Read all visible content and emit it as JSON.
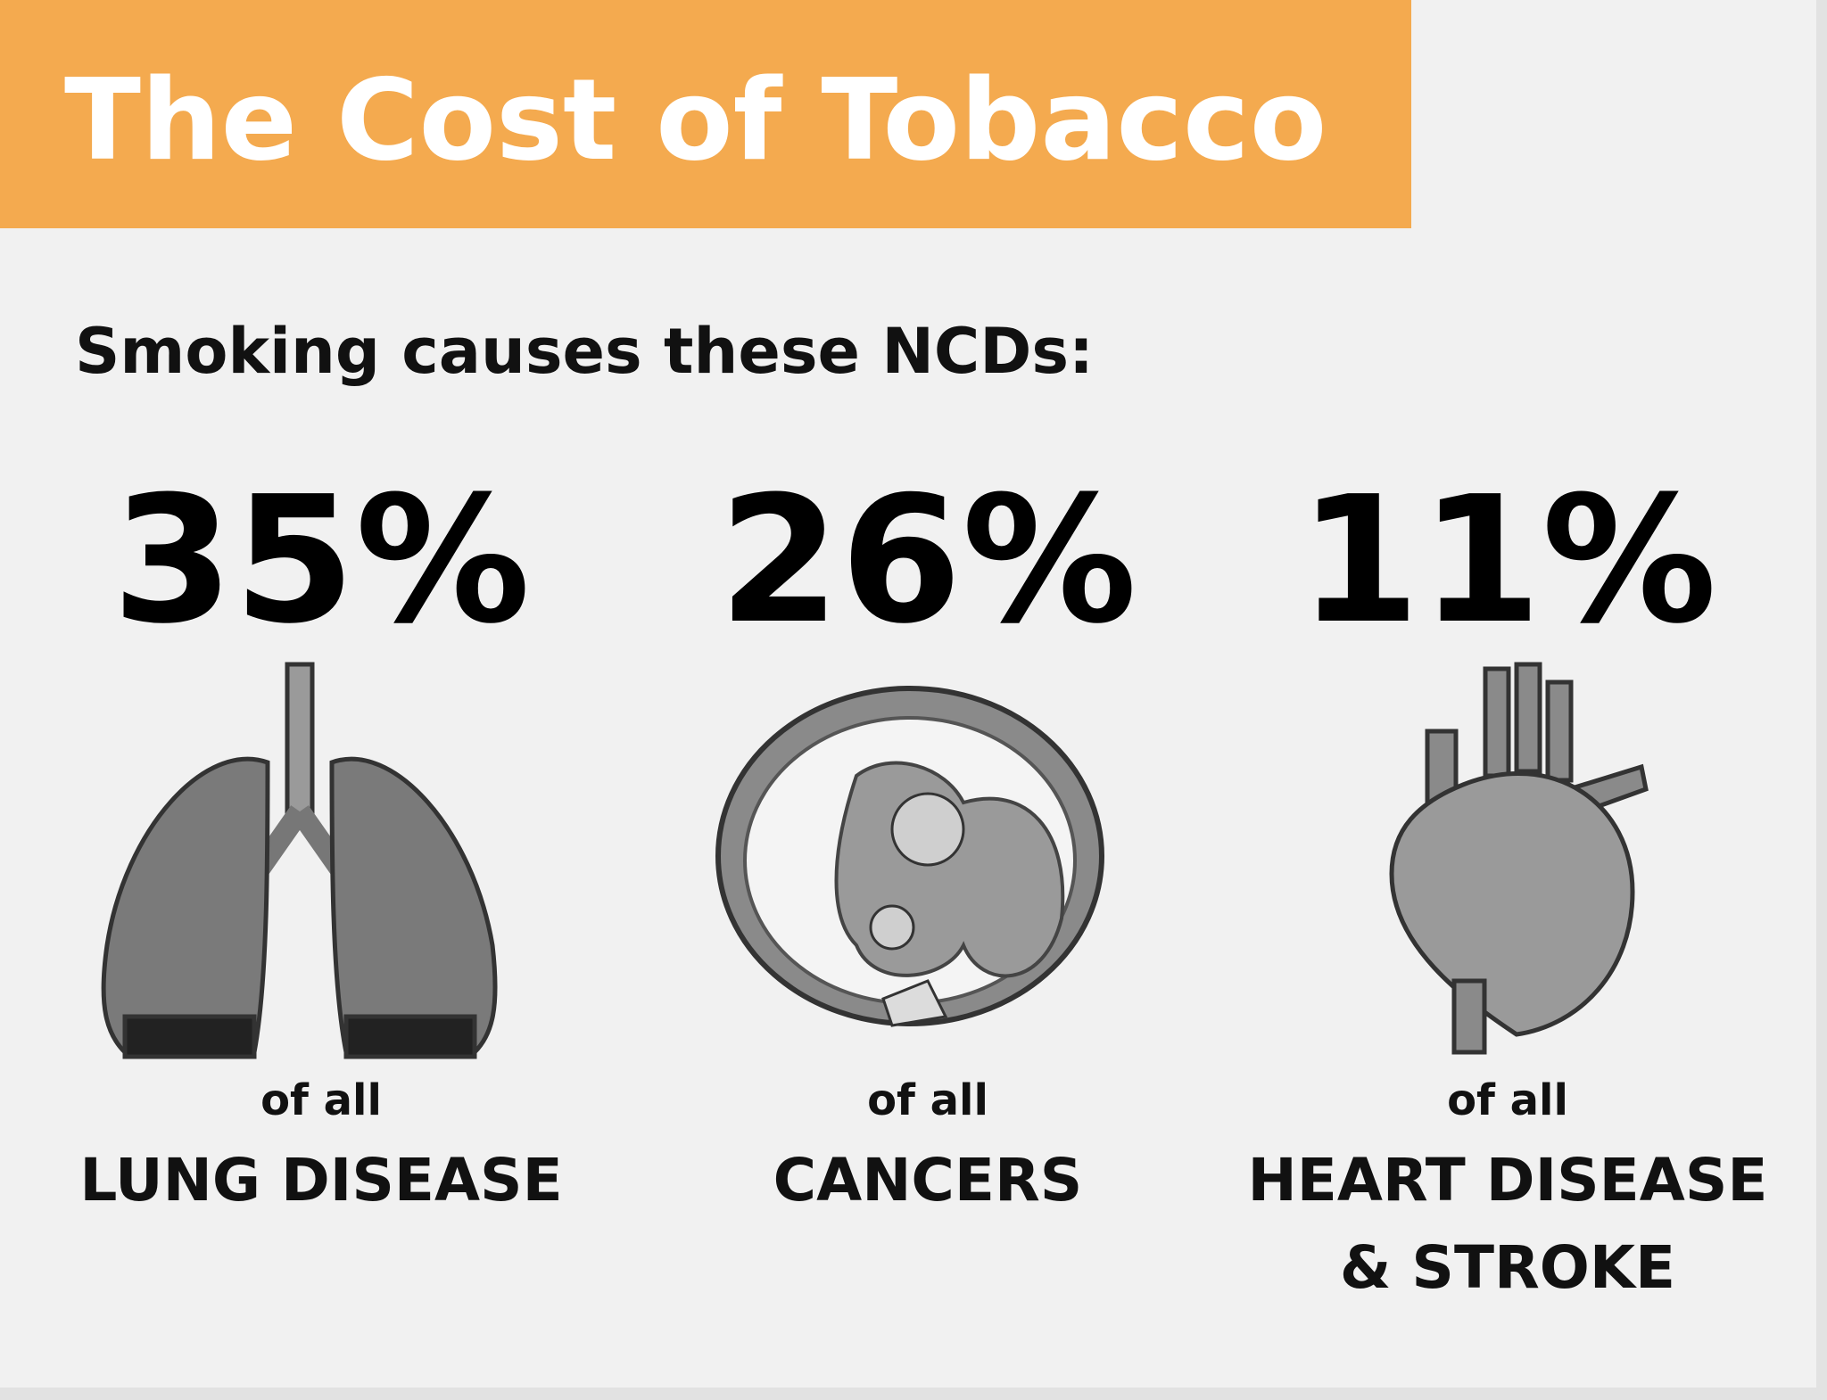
{
  "header": {
    "title": "The Cost of Tobacco"
  },
  "subtitle": "Smoking causes these NCDs:",
  "items": [
    {
      "stat": "35%",
      "prefix": "of all",
      "label_lines": [
        "LUNG DISEASE"
      ]
    },
    {
      "stat": "26%",
      "prefix": "of all",
      "label_lines": [
        "CANCERS"
      ]
    },
    {
      "stat": "11%",
      "prefix": "of all",
      "label_lines": [
        "HEART DISEASE",
        "& STROKE"
      ]
    }
  ]
}
